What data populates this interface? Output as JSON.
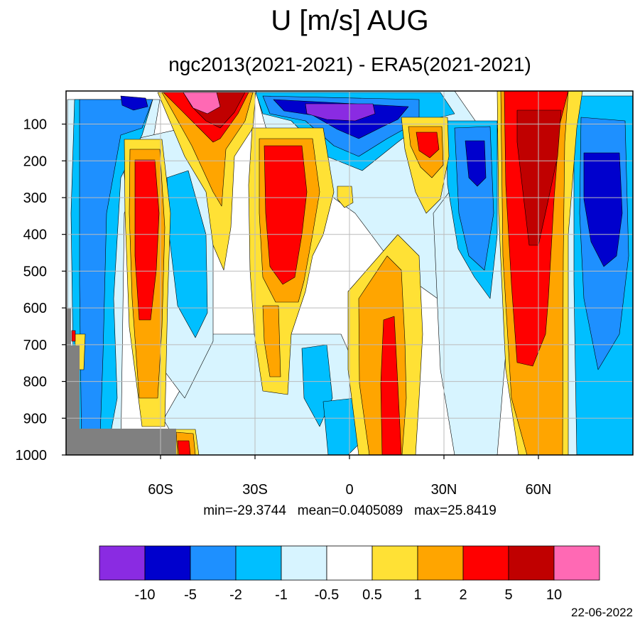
{
  "chart_data": {
    "type": "contour",
    "title": "U [m/s] AUG",
    "subtitle": "ngc2013(2021-2021) - ERA5(2021-2021)",
    "stats": {
      "min_label": "min=",
      "min": "-29.3744",
      "mean_label": "mean=",
      "mean": "0.0405089",
      "max_label": "max=",
      "max": "25.8419"
    },
    "date": "22-06-2022",
    "x_axis": {
      "range": [
        -90,
        90
      ],
      "ticks": [
        {
          "value": -60,
          "label": "60S"
        },
        {
          "value": -30,
          "label": "30S"
        },
        {
          "value": 0,
          "label": "0"
        },
        {
          "value": 30,
          "label": "30N"
        },
        {
          "value": 60,
          "label": "60N"
        }
      ]
    },
    "y_axis": {
      "range": [
        10,
        1000
      ],
      "reversed": true,
      "ticks": [
        {
          "value": 100,
          "label": "100"
        },
        {
          "value": 200,
          "label": "200"
        },
        {
          "value": 300,
          "label": "300"
        },
        {
          "value": 400,
          "label": "400"
        },
        {
          "value": 500,
          "label": "500"
        },
        {
          "value": 600,
          "label": "600"
        },
        {
          "value": 700,
          "label": "700"
        },
        {
          "value": 800,
          "label": "800"
        },
        {
          "value": 900,
          "label": "900"
        },
        {
          "value": 1000,
          "label": "1000"
        }
      ]
    },
    "grid": true,
    "levels": [
      "-10",
      "-5",
      "-2",
      "-1",
      "-0.5",
      "0.5",
      "1",
      "2",
      "5",
      "10"
    ],
    "colors": [
      "#8a2be2",
      "#0000cd",
      "#1e90ff",
      "#00bfff",
      "#d7f4ff",
      "#ffffff",
      "#ffe135",
      "#ffa500",
      "#ff0000",
      "#c00000",
      "#ff69b4"
    ],
    "missing_color": "#808080"
  }
}
